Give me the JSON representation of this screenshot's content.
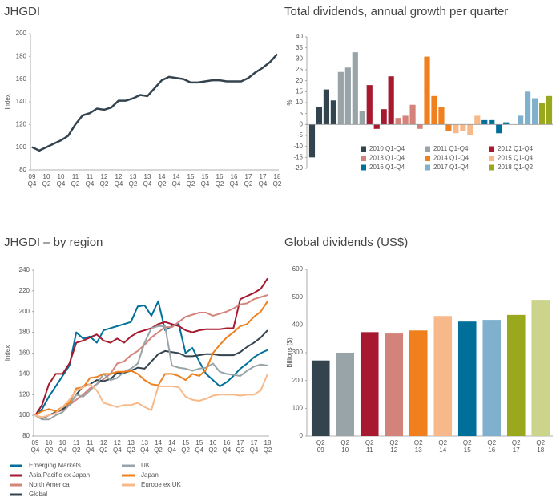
{
  "chart_data": [
    {
      "type": "line",
      "title": "JHGDI",
      "y_label": "Index",
      "categories": [
        "09 Q4",
        null,
        "10 Q2",
        null,
        "10 Q4",
        null,
        "11 Q2",
        null,
        "11 Q4",
        null,
        "12 Q2",
        null,
        "12 Q4",
        null,
        "13 Q2",
        null,
        "13 Q4",
        null,
        "14 Q2",
        null,
        "14 Q4",
        null,
        "15 Q2",
        null,
        "15 Q4",
        null,
        "16 Q2",
        null,
        "16 Q4",
        null,
        "17 Q2",
        null,
        "17 Q4",
        null,
        "18 Q2"
      ],
      "values": [
        100,
        97,
        100,
        103,
        106,
        110,
        120,
        128,
        130,
        134,
        133,
        135,
        141,
        141,
        143,
        146,
        145,
        152,
        159,
        162,
        161,
        160,
        157,
        157,
        158,
        159,
        159,
        158,
        158,
        158,
        161,
        166,
        170,
        175,
        182
      ],
      "color": "#34444f",
      "ylim": [
        80,
        200
      ],
      "yticks": [
        80,
        100,
        120,
        140,
        160,
        180,
        200
      ]
    },
    {
      "type": "bar",
      "title": "Total dividends, annual growth per quarter",
      "y_label": "%",
      "ylim": [
        -20,
        40
      ],
      "yticks": [
        -20,
        -15,
        -10,
        -5,
        0,
        5,
        10,
        15,
        20,
        25,
        30,
        35,
        40
      ],
      "series": [
        {
          "name": "2010 Q1-Q4",
          "color": "#34444f",
          "values": [
            -15,
            8,
            16,
            11
          ]
        },
        {
          "name": "2011 Q1-Q4",
          "color": "#98a4a8",
          "values": [
            24,
            26,
            33,
            6
          ]
        },
        {
          "name": "2012 Q1-Q4",
          "color": "#a6192e",
          "values": [
            18,
            -2,
            7,
            22
          ]
        },
        {
          "name": "2013 Q1-Q4",
          "color": "#d4837a",
          "values": [
            3,
            4,
            9,
            -2
          ]
        },
        {
          "name": "2014 Q1-Q4",
          "color": "#f0801e",
          "values": [
            31,
            13,
            8,
            -3
          ]
        },
        {
          "name": "2015 Q1-Q4",
          "color": "#f7b989",
          "values": [
            -4,
            -3,
            -5,
            4
          ]
        },
        {
          "name": "2016 Q1-Q4",
          "color": "#00709a",
          "values": [
            2,
            2,
            -4,
            1
          ]
        },
        {
          "name": "2017 Q1-Q4",
          "color": "#7fb1cf",
          "values": [
            0,
            4,
            15,
            12
          ]
        },
        {
          "name": "2018 Q1-Q2",
          "color": "#9aa81e",
          "values": [
            10,
            13
          ]
        }
      ]
    },
    {
      "type": "line",
      "title": "JHGDI – by region",
      "y_label": "Index",
      "categories": [
        "09 Q4",
        null,
        "10 Q2",
        null,
        "10 Q4",
        null,
        "11 Q2",
        null,
        "11 Q4",
        null,
        "12 Q2",
        null,
        "12 Q4",
        null,
        "13 Q2",
        null,
        "13 Q4",
        null,
        "14 Q2",
        null,
        "14 Q4",
        null,
        "15 Q2",
        null,
        "15 Q4",
        null,
        "16 Q2",
        null,
        "16 Q4",
        null,
        "17 Q2",
        null,
        "17 Q4",
        null,
        "18 Q2"
      ],
      "ylim": [
        80,
        240
      ],
      "yticks": [
        80,
        100,
        120,
        140,
        160,
        180,
        200,
        220,
        240
      ],
      "series": [
        {
          "name": "Emerging Markets",
          "color": "#00709a",
          "values": [
            100,
            106,
            118,
            128,
            138,
            148,
            180,
            174,
            176,
            170,
            182,
            184,
            186,
            188,
            190,
            205,
            206,
            196,
            210,
            182,
            186,
            188,
            160,
            165,
            152,
            140,
            134,
            128,
            132,
            138,
            145,
            150,
            156,
            160,
            163
          ]
        },
        {
          "name": "Asia Pacific ex Japan",
          "color": "#a6192e",
          "values": [
            100,
            110,
            130,
            140,
            140,
            150,
            170,
            172,
            175,
            178,
            172,
            170,
            174,
            170,
            176,
            180,
            182,
            184,
            188,
            190,
            188,
            186,
            182,
            180,
            182,
            183,
            183,
            183,
            184,
            184,
            212,
            215,
            218,
            222,
            232
          ]
        },
        {
          "name": "North America",
          "color": "#d4837a",
          "values": [
            100,
            98,
            100,
            103,
            105,
            110,
            115,
            120,
            126,
            130,
            135,
            140,
            150,
            152,
            158,
            162,
            168,
            175,
            180,
            185,
            185,
            190,
            195,
            197,
            199,
            199,
            196,
            198,
            200,
            203,
            207,
            208,
            212,
            214,
            216
          ]
        },
        {
          "name": "Global",
          "color": "#34444f",
          "values": [
            100,
            97,
            100,
            103,
            106,
            110,
            120,
            128,
            130,
            134,
            133,
            135,
            141,
            141,
            143,
            146,
            145,
            152,
            159,
            162,
            161,
            160,
            157,
            157,
            158,
            159,
            159,
            158,
            158,
            158,
            161,
            166,
            170,
            175,
            182
          ]
        },
        {
          "name": "UK",
          "color": "#98a4a8",
          "values": [
            100,
            96,
            96,
            100,
            103,
            110,
            120,
            118,
            124,
            130,
            140,
            134,
            136,
            142,
            145,
            150,
            170,
            184,
            186,
            186,
            148,
            146,
            145,
            143,
            145,
            146,
            150,
            142,
            140,
            139,
            138,
            143,
            147,
            149,
            148
          ]
        },
        {
          "name": "Japan",
          "color": "#f0801e",
          "values": [
            100,
            104,
            106,
            104,
            108,
            112,
            126,
            127,
            136,
            137,
            140,
            140,
            142,
            142,
            143,
            140,
            134,
            130,
            129,
            140,
            140,
            138,
            134,
            140,
            138,
            144,
            160,
            168,
            175,
            180,
            186,
            188,
            195,
            200,
            210
          ]
        },
        {
          "name": "Europe ex UK",
          "color": "#f7b989",
          "values": [
            100,
            98,
            100,
            102,
            108,
            115,
            124,
            127,
            130,
            124,
            112,
            110,
            108,
            110,
            110,
            112,
            108,
            105,
            128,
            128,
            128,
            127,
            118,
            115,
            114,
            116,
            119,
            120,
            120,
            120,
            119,
            120,
            120,
            124,
            140
          ]
        }
      ]
    },
    {
      "type": "bar",
      "title": "Global dividends (US$)",
      "y_label": "Billions ($)",
      "categories": [
        "Q2 09",
        "Q2 10",
        "Q2 11",
        "Q2 12",
        "Q2 13",
        "Q2 14",
        "Q2 15",
        "Q2 16",
        "Q2 17",
        "Q2 18"
      ],
      "values": [
        272,
        300,
        374,
        369,
        380,
        432,
        412,
        418,
        436,
        490
      ],
      "colors": [
        "#34444f",
        "#98a4a8",
        "#a6192e",
        "#d4837a",
        "#f0801e",
        "#f7b989",
        "#00709a",
        "#7fb1cf",
        "#9aa81e",
        "#ccd38a"
      ],
      "ylim": [
        0,
        600
      ],
      "yticks": [
        0,
        100,
        200,
        300,
        400,
        500,
        600
      ]
    }
  ]
}
